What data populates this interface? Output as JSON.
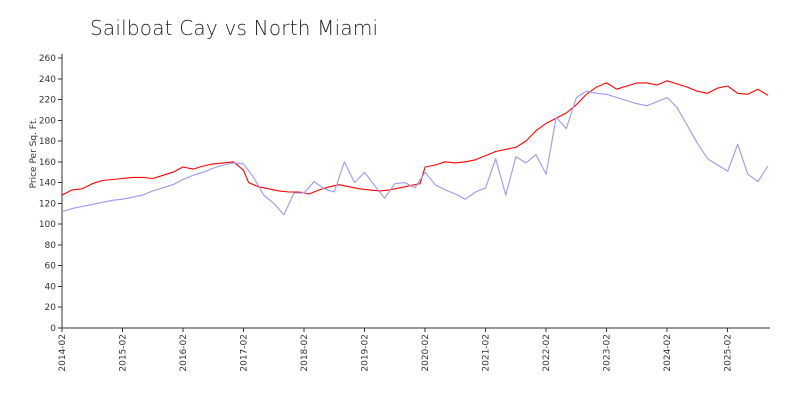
{
  "chart_data": {
    "type": "line",
    "title": "Sailboat Cay vs North Miami",
    "xlabel": "",
    "ylabel": "Price Per Sq. Ft.",
    "ylim": [
      0,
      260
    ],
    "yticks": [
      0,
      20,
      40,
      60,
      80,
      100,
      120,
      140,
      160,
      180,
      200,
      220,
      240,
      260
    ],
    "xlim": [
      "2014-02",
      "2025-10"
    ],
    "xticks": [
      "2014-02",
      "2015-02",
      "2016-02",
      "2017-02",
      "2018-02",
      "2019-02",
      "2020-02",
      "2021-02",
      "2022-02",
      "2023-02",
      "2024-02",
      "2025-02"
    ],
    "grid": false,
    "legend": "none",
    "series": [
      {
        "color": "#ff0000",
        "points": [
          [
            "2014-02",
            128
          ],
          [
            "2014-04",
            133
          ],
          [
            "2014-06",
            134
          ],
          [
            "2014-08",
            139
          ],
          [
            "2014-10",
            142
          ],
          [
            "2014-12",
            143
          ],
          [
            "2015-02",
            144
          ],
          [
            "2015-04",
            145
          ],
          [
            "2015-06",
            145
          ],
          [
            "2015-08",
            144
          ],
          [
            "2015-10",
            147
          ],
          [
            "2015-12",
            150
          ],
          [
            "2016-02",
            155
          ],
          [
            "2016-04",
            153
          ],
          [
            "2016-06",
            156
          ],
          [
            "2016-08",
            158
          ],
          [
            "2016-10",
            159
          ],
          [
            "2016-12",
            160
          ],
          [
            "2017-02",
            152
          ],
          [
            "2017-03",
            140
          ],
          [
            "2017-05",
            136
          ],
          [
            "2017-07",
            134
          ],
          [
            "2017-09",
            132
          ],
          [
            "2017-11",
            131
          ],
          [
            "2018-01",
            131
          ],
          [
            "2018-03",
            129
          ],
          [
            "2018-05",
            133
          ],
          [
            "2018-07",
            136
          ],
          [
            "2018-09",
            138
          ],
          [
            "2018-11",
            136
          ],
          [
            "2019-01",
            134
          ],
          [
            "2019-03",
            133
          ],
          [
            "2019-05",
            132
          ],
          [
            "2019-07",
            133
          ],
          [
            "2019-09",
            135
          ],
          [
            "2019-11",
            137
          ],
          [
            "2020-01",
            139
          ],
          [
            "2020-02",
            155
          ],
          [
            "2020-04",
            157
          ],
          [
            "2020-06",
            160
          ],
          [
            "2020-08",
            159
          ],
          [
            "2020-10",
            160
          ],
          [
            "2020-12",
            162
          ],
          [
            "2021-02",
            166
          ],
          [
            "2021-04",
            170
          ],
          [
            "2021-06",
            172
          ],
          [
            "2021-08",
            174
          ],
          [
            "2021-10",
            180
          ],
          [
            "2021-12",
            190
          ],
          [
            "2022-02",
            197
          ],
          [
            "2022-04",
            202
          ],
          [
            "2022-06",
            207
          ],
          [
            "2022-08",
            215
          ],
          [
            "2022-10",
            225
          ],
          [
            "2022-12",
            232
          ],
          [
            "2023-02",
            236
          ],
          [
            "2023-04",
            230
          ],
          [
            "2023-06",
            233
          ],
          [
            "2023-08",
            236
          ],
          [
            "2023-10",
            236
          ],
          [
            "2023-12",
            234
          ],
          [
            "2024-02",
            238
          ],
          [
            "2024-04",
            235
          ],
          [
            "2024-06",
            232
          ],
          [
            "2024-08",
            228
          ],
          [
            "2024-10",
            226
          ],
          [
            "2024-12",
            231
          ],
          [
            "2025-02",
            233
          ],
          [
            "2025-04",
            226
          ],
          [
            "2025-06",
            225
          ],
          [
            "2025-08",
            230
          ],
          [
            "2025-10",
            224
          ]
        ]
      },
      {
        "color": "#9999ee",
        "points": [
          [
            "2014-02",
            112
          ],
          [
            "2014-04",
            115
          ],
          [
            "2014-06",
            117
          ],
          [
            "2014-08",
            119
          ],
          [
            "2014-10",
            121
          ],
          [
            "2014-12",
            123
          ],
          [
            "2015-02",
            124
          ],
          [
            "2015-04",
            126
          ],
          [
            "2015-06",
            128
          ],
          [
            "2015-08",
            132
          ],
          [
            "2015-10",
            135
          ],
          [
            "2015-12",
            138
          ],
          [
            "2016-02",
            143
          ],
          [
            "2016-04",
            147
          ],
          [
            "2016-06",
            150
          ],
          [
            "2016-08",
            154
          ],
          [
            "2016-10",
            157
          ],
          [
            "2016-12",
            159
          ],
          [
            "2017-02",
            158
          ],
          [
            "2017-04",
            145
          ],
          [
            "2017-06",
            128
          ],
          [
            "2017-08",
            120
          ],
          [
            "2017-10",
            109
          ],
          [
            "2017-12",
            130
          ],
          [
            "2018-02",
            130
          ],
          [
            "2018-04",
            141
          ],
          [
            "2018-06",
            134
          ],
          [
            "2018-08",
            131
          ],
          [
            "2018-10",
            160
          ],
          [
            "2018-12",
            140
          ],
          [
            "2019-02",
            150
          ],
          [
            "2019-04",
            137
          ],
          [
            "2019-06",
            125
          ],
          [
            "2019-08",
            139
          ],
          [
            "2019-10",
            140
          ],
          [
            "2019-12",
            135
          ],
          [
            "2020-02",
            150
          ],
          [
            "2020-04",
            138
          ],
          [
            "2020-06",
            133
          ],
          [
            "2020-08",
            129
          ],
          [
            "2020-10",
            124
          ],
          [
            "2020-12",
            131
          ],
          [
            "2021-02",
            135
          ],
          [
            "2021-04",
            163
          ],
          [
            "2021-06",
            128
          ],
          [
            "2021-08",
            165
          ],
          [
            "2021-10",
            159
          ],
          [
            "2021-12",
            167
          ],
          [
            "2022-02",
            148
          ],
          [
            "2022-04",
            203
          ],
          [
            "2022-06",
            192
          ],
          [
            "2022-08",
            222
          ],
          [
            "2022-10",
            228
          ],
          [
            "2022-12",
            226
          ],
          [
            "2023-02",
            225
          ],
          [
            "2023-04",
            222
          ],
          [
            "2023-06",
            219
          ],
          [
            "2023-08",
            216
          ],
          [
            "2023-10",
            214
          ],
          [
            "2023-12",
            218
          ],
          [
            "2024-02",
            222
          ],
          [
            "2024-04",
            212
          ],
          [
            "2024-06",
            195
          ],
          [
            "2024-08",
            178
          ],
          [
            "2024-10",
            163
          ],
          [
            "2024-12",
            157
          ],
          [
            "2025-02",
            151
          ],
          [
            "2025-04",
            177
          ],
          [
            "2025-06",
            148
          ],
          [
            "2025-08",
            141
          ],
          [
            "2025-10",
            156
          ]
        ]
      }
    ]
  }
}
